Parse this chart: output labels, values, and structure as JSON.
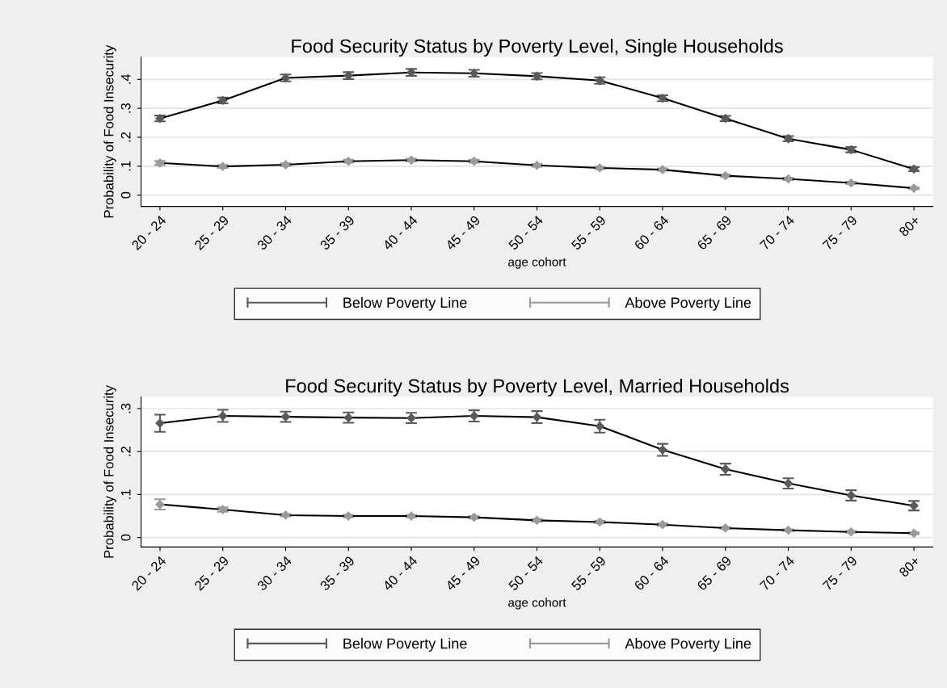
{
  "chart_data": [
    {
      "type": "line",
      "title": "Food Security Status by Poverty Level, Single Households",
      "xlabel": "age cohort",
      "ylabel": "Probability of Food Insecurity",
      "categories": [
        "20 - 24",
        "25 - 29",
        "30 - 34",
        "35 - 39",
        "40 - 44",
        "45 - 49",
        "50 - 54",
        "55 - 59",
        "60 - 64",
        "65 - 69",
        "70 - 74",
        "75 - 79",
        "80+"
      ],
      "series": [
        {
          "name": "Below Poverty Line",
          "color": "#5a5a5a",
          "values": [
            0.265,
            0.327,
            0.405,
            0.413,
            0.424,
            0.421,
            0.411,
            0.396,
            0.335,
            0.265,
            0.195,
            0.157,
            0.09
          ],
          "errors": [
            0.01,
            0.01,
            0.012,
            0.012,
            0.012,
            0.012,
            0.011,
            0.011,
            0.01,
            0.009,
            0.009,
            0.009,
            0.007
          ]
        },
        {
          "name": "Above Poverty Line",
          "color": "#9a9a9a",
          "values": [
            0.111,
            0.099,
            0.105,
            0.117,
            0.121,
            0.117,
            0.103,
            0.094,
            0.088,
            0.067,
            0.056,
            0.042,
            0.024
          ],
          "errors": [
            0.007,
            0.005,
            0.005,
            0.005,
            0.005,
            0.005,
            0.005,
            0.004,
            0.004,
            0.004,
            0.004,
            0.004,
            0.003
          ]
        }
      ],
      "ylim": [
        -0.039,
        0.477
      ],
      "yticks": [
        {
          "value": 0,
          "label": "0"
        },
        {
          "value": 0.1,
          "label": ".1"
        },
        {
          "value": 0.2,
          "label": ".2"
        },
        {
          "value": 0.3,
          "label": ".3"
        },
        {
          "value": 0.4,
          "label": ".4"
        }
      ],
      "grid": "y",
      "legend": "bottom",
      "marker": "diamond",
      "line_style": "solid"
    },
    {
      "type": "line",
      "title": "Food Security Status by Poverty Level, Married Households",
      "xlabel": "age cohort",
      "ylabel": "Probability of Food Insecurity",
      "categories": [
        "20 - 24",
        "25 - 29",
        "30 - 34",
        "35 - 39",
        "40 - 44",
        "45 - 49",
        "50 - 54",
        "55 - 59",
        "60 - 64",
        "65 - 69",
        "70 - 74",
        "75 - 79",
        "80+"
      ],
      "series": [
        {
          "name": "Below Poverty Line",
          "color": "#5a5a5a",
          "values": [
            0.266,
            0.283,
            0.281,
            0.279,
            0.278,
            0.283,
            0.28,
            0.259,
            0.204,
            0.159,
            0.126,
            0.098,
            0.074
          ],
          "errors": [
            0.02,
            0.014,
            0.012,
            0.012,
            0.012,
            0.013,
            0.014,
            0.015,
            0.014,
            0.013,
            0.012,
            0.012,
            0.011
          ]
        },
        {
          "name": "Above Poverty Line",
          "color": "#9a9a9a",
          "values": [
            0.077,
            0.065,
            0.052,
            0.05,
            0.05,
            0.047,
            0.04,
            0.036,
            0.03,
            0.022,
            0.017,
            0.013,
            0.01
          ],
          "errors": [
            0.012,
            0.005,
            0.003,
            0.003,
            0.003,
            0.003,
            0.003,
            0.003,
            0.003,
            0.002,
            0.002,
            0.002,
            0.002
          ]
        }
      ],
      "ylim": [
        -0.022,
        0.327
      ],
      "yticks": [
        {
          "value": 0,
          "label": "0"
        },
        {
          "value": 0.1,
          "label": ".1"
        },
        {
          "value": 0.2,
          "label": ".2"
        },
        {
          "value": 0.3,
          "label": ".3"
        }
      ],
      "grid": "y",
      "legend": "bottom",
      "marker": "diamond",
      "line_style": "solid"
    }
  ]
}
